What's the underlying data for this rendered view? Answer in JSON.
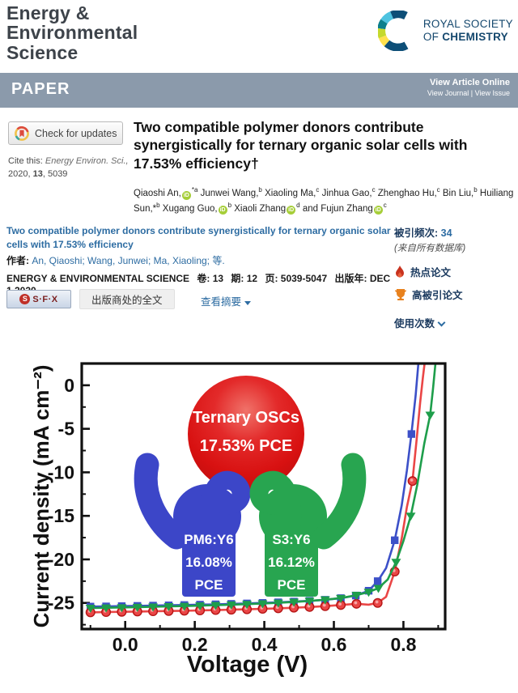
{
  "colors": {
    "banner_bg": "#8b9aab",
    "link_blue": "#2d6ca2",
    "wos_navy": "#1b3a5f",
    "rsc_navy": "#15486e",
    "flame_red": "#c8321e",
    "trophy_orange": "#e8821e",
    "orcid_green": "#a6ce39"
  },
  "header": {
    "journal_lines": [
      "Energy &",
      "Environmental",
      "Science"
    ],
    "rsc_line1": "ROYAL SOCIETY",
    "rsc_line2a": "OF ",
    "rsc_line2b": "CHEMISTRY"
  },
  "banner": {
    "label": "PAPER",
    "view_article_online": "View Article Online",
    "view_journal": "View Journal",
    "separator": " | ",
    "view_issue": "View Issue"
  },
  "article": {
    "check_updates": "Check for updates",
    "cite_label": "Cite this: ",
    "cite_journal": "Energy Environ. Sci.,",
    "cite_year": "2020, ",
    "cite_volume": "13",
    "cite_pages": ", 5039",
    "title": "Two compatible polymer donors contribute synergistically for ternary organic solar cells with 17.53% efficiency†",
    "authors": [
      {
        "t": "Qiaoshi An,",
        "orcid": true,
        "sup": "*a"
      },
      {
        "t": "Junwei Wang,",
        "sup": "b"
      },
      {
        "t": "Xiaoling Ma,",
        "sup": "c"
      },
      {
        "t": "Jinhua Gao,",
        "sup": "c"
      },
      {
        "t": "Zhenghao Hu,",
        "sup": "c"
      },
      {
        "t": "Bin Liu,",
        "sup": "b"
      },
      {
        "t": "Huiliang Sun,*",
        "sup": "b"
      },
      {
        "t": "Xugang Guo,",
        "orcid": true,
        "sup": "b"
      },
      {
        "t": "Xiaoli Zhang",
        "orcid": true,
        "sup": "d"
      },
      {
        "t": "and Fujun Zhang",
        "orcid": true,
        "sup": "c"
      }
    ]
  },
  "wos": {
    "title": "Two compatible polymer donors contribute synergistically for ternary organic solar cells with 17.53% efficiency",
    "authors_label": "作者:",
    "authors_value": " An, Qiaoshi; Wang, Junwei; Ma, Xiaoling; 等.",
    "source_journal": "ENERGY & ENVIRONMENTAL SCIENCE",
    "volume_label": "卷: 13",
    "issue_label": "期: 12",
    "pages_label": "页: 5039-5047",
    "pubdate_label": "出版年: DEC 1 2020",
    "sfx_label": "S·F·X",
    "fulltext_button": "出版商处的全文",
    "abstract_link": "查看摘要",
    "cited_label": "被引频次: ",
    "cited_count": "34",
    "cited_source": "(来自所有数据库)",
    "hot_paper": "热点论文",
    "highly_cited": "高被引论文",
    "usage_label": "使用次数"
  },
  "chart_data": {
    "type": "line",
    "title": "",
    "xlabel": "Voltage (V)",
    "ylabel": "Current density (mA cm⁻²)",
    "xlim": [
      -0.125,
      0.92
    ],
    "ylim": [
      -28,
      2.5
    ],
    "x_ticks": [
      0.0,
      0.2,
      0.4,
      0.6,
      0.8
    ],
    "x_minor_ticks": [
      -0.1,
      0.1,
      0.3,
      0.5,
      0.7,
      0.9
    ],
    "y_ticks": [
      0,
      -5,
      -10,
      -15,
      -20,
      -25
    ],
    "y_minor_ticks": [
      2.5,
      -2.5,
      -7.5,
      -12.5,
      -17.5,
      -22.5,
      -27.5
    ],
    "grid": false,
    "legend": "none",
    "frame_color": "#111111",
    "series": [
      {
        "name": "PM6:Y6 binary OSC",
        "color": "#3c50c8",
        "marker": "square",
        "points": [
          [
            -0.1,
            -25.42
          ],
          [
            -0.055,
            -25.4
          ],
          [
            -0.01,
            -25.37
          ],
          [
            0.035,
            -25.34
          ],
          [
            0.08,
            -25.31
          ],
          [
            0.125,
            -25.28
          ],
          [
            0.17,
            -25.24
          ],
          [
            0.215,
            -25.2
          ],
          [
            0.26,
            -25.16
          ],
          [
            0.305,
            -25.11
          ],
          [
            0.35,
            -25.06
          ],
          [
            0.395,
            -25.0
          ],
          [
            0.44,
            -24.93
          ],
          [
            0.485,
            -24.85
          ],
          [
            0.53,
            -24.76
          ],
          [
            0.575,
            -24.64
          ],
          [
            0.62,
            -24.45
          ],
          [
            0.663,
            -24.15
          ],
          [
            0.7,
            -23.6
          ],
          [
            0.726,
            -22.5
          ],
          [
            0.75,
            -21.0
          ],
          [
            0.775,
            -17.8
          ],
          [
            0.795,
            -13.8
          ],
          [
            0.81,
            -9.8
          ],
          [
            0.823,
            -5.6
          ],
          [
            0.835,
            -1.2
          ],
          [
            0.843,
            2.5
          ]
        ],
        "marker_points": [
          [
            -0.1,
            -25.42
          ],
          [
            -0.055,
            -25.4
          ],
          [
            -0.01,
            -25.37
          ],
          [
            0.035,
            -25.34
          ],
          [
            0.08,
            -25.31
          ],
          [
            0.125,
            -25.28
          ],
          [
            0.17,
            -25.24
          ],
          [
            0.215,
            -25.2
          ],
          [
            0.26,
            -25.16
          ],
          [
            0.305,
            -25.11
          ],
          [
            0.35,
            -25.06
          ],
          [
            0.395,
            -25.0
          ],
          [
            0.44,
            -24.93
          ],
          [
            0.485,
            -24.85
          ],
          [
            0.53,
            -24.76
          ],
          [
            0.575,
            -24.64
          ],
          [
            0.62,
            -24.45
          ],
          [
            0.663,
            -24.15
          ],
          [
            0.7,
            -23.6
          ],
          [
            0.726,
            -22.5
          ],
          [
            0.775,
            -17.8
          ],
          [
            0.823,
            -5.6
          ]
        ]
      },
      {
        "name": "Ternary OSC",
        "color": "#ea4646",
        "marker": "circle",
        "points": [
          [
            -0.1,
            -26.08
          ],
          [
            -0.055,
            -26.05
          ],
          [
            -0.01,
            -26.02
          ],
          [
            0.035,
            -25.99
          ],
          [
            0.08,
            -25.96
          ],
          [
            0.125,
            -25.93
          ],
          [
            0.17,
            -25.9
          ],
          [
            0.215,
            -25.86
          ],
          [
            0.26,
            -25.82
          ],
          [
            0.305,
            -25.78
          ],
          [
            0.35,
            -25.73
          ],
          [
            0.395,
            -25.68
          ],
          [
            0.44,
            -25.62
          ],
          [
            0.485,
            -25.55
          ],
          [
            0.53,
            -25.47
          ],
          [
            0.575,
            -25.37
          ],
          [
            0.62,
            -25.24
          ],
          [
            0.665,
            -25.1
          ],
          [
            0.7,
            -25.2
          ],
          [
            0.726,
            -25.0
          ],
          [
            0.75,
            -24.3
          ],
          [
            0.775,
            -21.4
          ],
          [
            0.795,
            -17.6
          ],
          [
            0.81,
            -14.0
          ],
          [
            0.826,
            -11.0
          ],
          [
            0.838,
            -6.2
          ],
          [
            0.848,
            -2.0
          ],
          [
            0.856,
            0.9
          ],
          [
            0.861,
            2.5
          ]
        ],
        "marker_points": [
          [
            -0.1,
            -26.08
          ],
          [
            -0.055,
            -26.05
          ],
          [
            -0.01,
            -26.02
          ],
          [
            0.035,
            -25.99
          ],
          [
            0.08,
            -25.96
          ],
          [
            0.125,
            -25.93
          ],
          [
            0.17,
            -25.9
          ],
          [
            0.215,
            -25.86
          ],
          [
            0.26,
            -25.82
          ],
          [
            0.305,
            -25.78
          ],
          [
            0.35,
            -25.73
          ],
          [
            0.395,
            -25.68
          ],
          [
            0.44,
            -25.62
          ],
          [
            0.485,
            -25.55
          ],
          [
            0.53,
            -25.47
          ],
          [
            0.575,
            -25.37
          ],
          [
            0.62,
            -25.24
          ],
          [
            0.665,
            -25.1
          ],
          [
            0.726,
            -25.0
          ],
          [
            0.775,
            -21.4
          ],
          [
            0.826,
            -11.0
          ]
        ]
      },
      {
        "name": "S3:Y6 binary OSC",
        "color": "#1e9e4b",
        "marker": "triangle-down",
        "points": [
          [
            -0.1,
            -25.58
          ],
          [
            -0.055,
            -25.55
          ],
          [
            -0.01,
            -25.52
          ],
          [
            0.035,
            -25.48
          ],
          [
            0.08,
            -25.44
          ],
          [
            0.125,
            -25.4
          ],
          [
            0.17,
            -25.36
          ],
          [
            0.215,
            -25.31
          ],
          [
            0.26,
            -25.26
          ],
          [
            0.305,
            -25.2
          ],
          [
            0.35,
            -25.14
          ],
          [
            0.395,
            -25.07
          ],
          [
            0.44,
            -24.99
          ],
          [
            0.485,
            -24.89
          ],
          [
            0.53,
            -24.77
          ],
          [
            0.575,
            -24.62
          ],
          [
            0.62,
            -24.45
          ],
          [
            0.665,
            -24.1
          ],
          [
            0.7,
            -23.75
          ],
          [
            0.728,
            -23.3
          ],
          [
            0.755,
            -22.3
          ],
          [
            0.779,
            -20.3
          ],
          [
            0.8,
            -17.9
          ],
          [
            0.821,
            -15.0
          ],
          [
            0.84,
            -11.4
          ],
          [
            0.86,
            -6.7
          ],
          [
            0.877,
            -3.4
          ],
          [
            0.885,
            -0.4
          ],
          [
            0.892,
            2.5
          ]
        ],
        "marker_points": [
          [
            -0.1,
            -25.58
          ],
          [
            -0.055,
            -25.55
          ],
          [
            -0.01,
            -25.52
          ],
          [
            0.035,
            -25.48
          ],
          [
            0.08,
            -25.44
          ],
          [
            0.125,
            -25.4
          ],
          [
            0.17,
            -25.36
          ],
          [
            0.215,
            -25.31
          ],
          [
            0.26,
            -25.26
          ],
          [
            0.305,
            -25.2
          ],
          [
            0.35,
            -25.14
          ],
          [
            0.395,
            -25.07
          ],
          [
            0.44,
            -24.99
          ],
          [
            0.485,
            -24.89
          ],
          [
            0.53,
            -24.77
          ],
          [
            0.575,
            -24.62
          ],
          [
            0.62,
            -24.45
          ],
          [
            0.665,
            -24.1
          ],
          [
            0.7,
            -23.75
          ],
          [
            0.728,
            -23.3
          ],
          [
            0.779,
            -20.3
          ],
          [
            0.821,
            -15.0
          ],
          [
            0.877,
            -3.4
          ]
        ]
      }
    ],
    "annotations": {
      "ball": {
        "line1": "Ternary OSCs",
        "line2": "17.53% PCE",
        "color_dark": "#bb0d0d",
        "color_light": "#f0736a"
      },
      "left_hand": {
        "color": "#3c46c8",
        "lines": [
          "PM6:Y6",
          "16.08%",
          "PCE"
        ]
      },
      "right_hand": {
        "color": "#28a550",
        "lines": [
          "S3:Y6",
          "16.12%",
          "PCE"
        ]
      }
    }
  }
}
